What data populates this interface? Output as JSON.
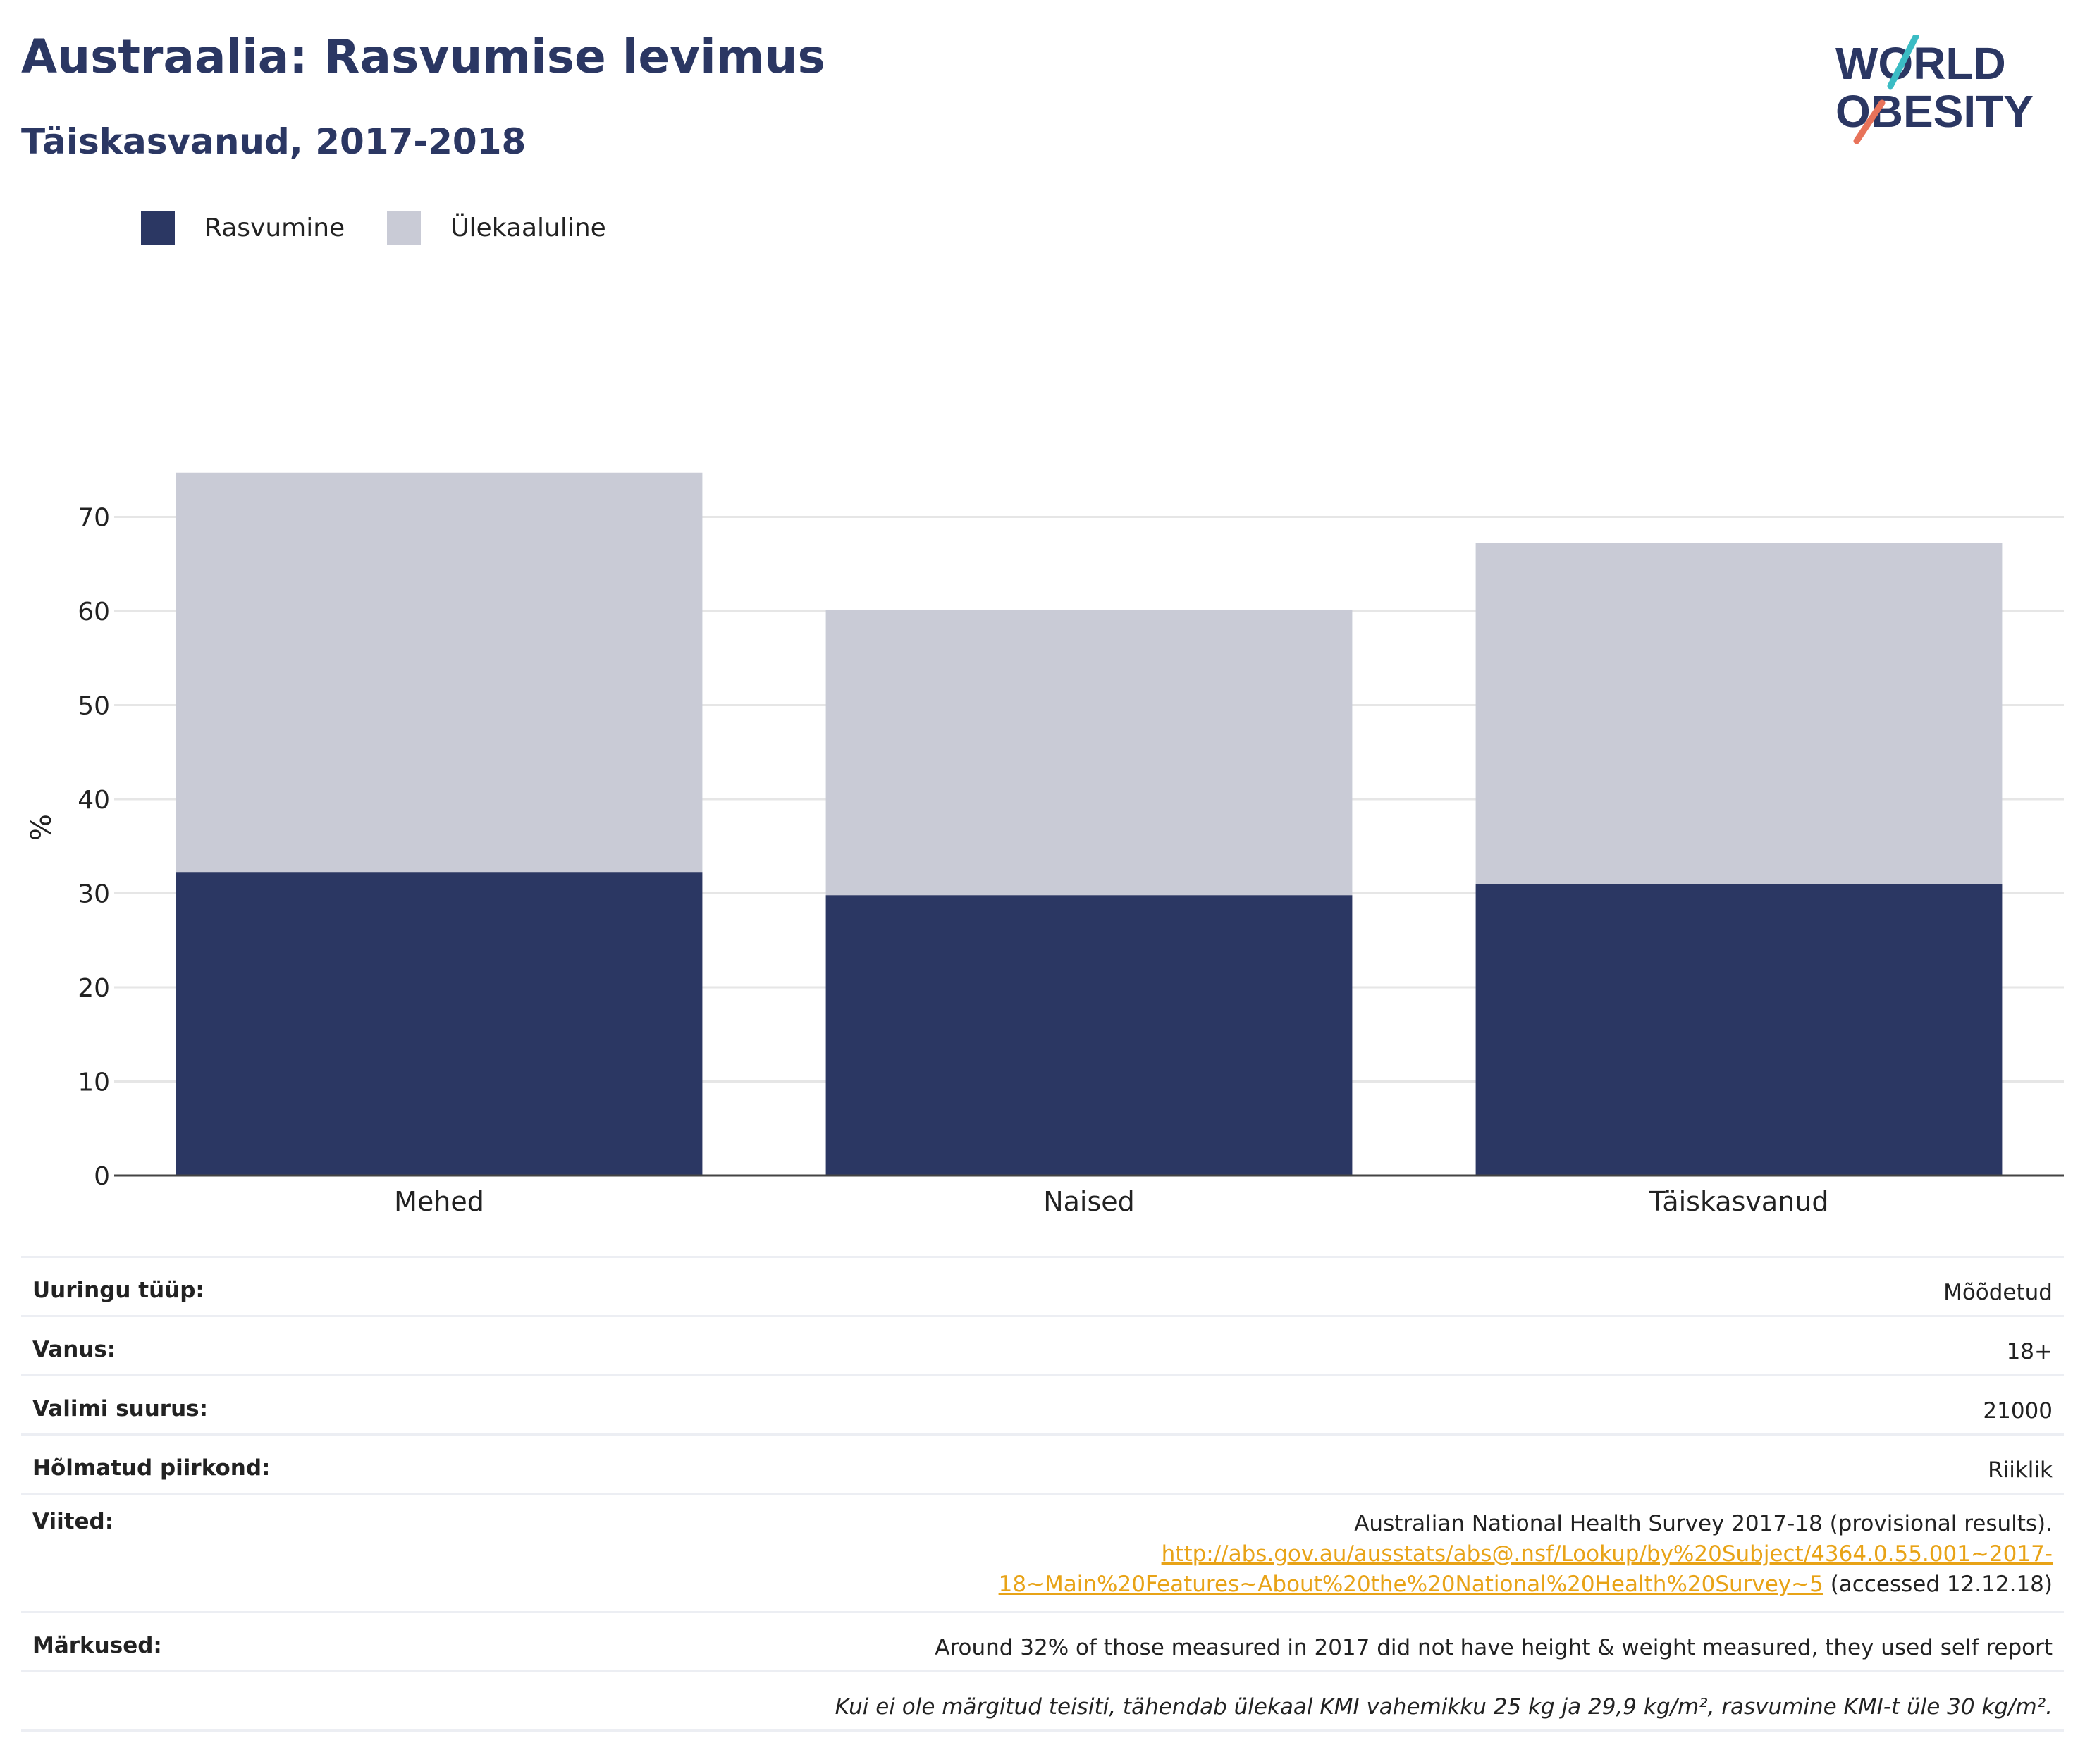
{
  "header": {
    "title": "Austraalia: Rasvumise levimus",
    "subtitle": "Täiskasvanud, 2017-2018"
  },
  "logo": {
    "line1": "WORLD",
    "line2": "OBESITY"
  },
  "legend": {
    "items": [
      {
        "label": "Rasvumine",
        "color": "#2b3763"
      },
      {
        "label": "Ülekaaluline",
        "color": "#c9cbd6"
      }
    ]
  },
  "chart_data": {
    "type": "bar",
    "stacked": true,
    "categories": [
      "Mehed",
      "Naised",
      "Täiskasvanud"
    ],
    "series": [
      {
        "name": "Rasvumine",
        "color": "#2b3763",
        "values": [
          32.2,
          29.8,
          31.0
        ]
      },
      {
        "name": "Ülekaaluline",
        "color": "#c9cbd6",
        "values": [
          42.5,
          30.3,
          36.2
        ]
      }
    ],
    "ylabel": "%",
    "yticks": [
      0,
      10,
      20,
      30,
      40,
      50,
      60,
      70
    ],
    "ylim": [
      0,
      80
    ],
    "grid": true,
    "legend_position": "top-left"
  },
  "info": {
    "rows": [
      {
        "label": "Uuringu tüüp:",
        "value": "Mõõdetud"
      },
      {
        "label": "Vanus:",
        "value": "18+"
      },
      {
        "label": "Valimi suurus:",
        "value": "21000"
      },
      {
        "label": "Hõlmatud piirkond:",
        "value": "Riiklik"
      }
    ],
    "references": {
      "label": "Viited:",
      "text": "Australian National Health Survey 2017-18 (provisional results).",
      "link_line1": "http://abs.gov.au/ausstats/abs@.nsf/Lookup/by%20Subject/4364.0.55.001~2017-",
      "link_line2": "18~Main%20Features~About%20the%20National%20Health%20Survey~5",
      "accessed": " (accessed 12.12.18)"
    },
    "notes": {
      "label": "Märkused:",
      "value": "Around 32% of those measured in 2017 did not have height & weight measured, they used self report"
    },
    "footnote": "Kui ei ole märgitud teisiti, tähendab ülekaal KMI vahemikku 25 kg ja 29,9 kg/m², rasvumine KMI-t üle 30 kg/m²."
  }
}
